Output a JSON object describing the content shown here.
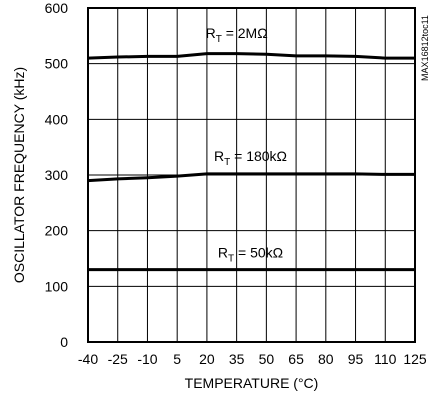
{
  "chart_data": {
    "type": "line",
    "title": "",
    "xlabel": "TEMPERATURE (°C)",
    "ylabel": "OSCILLATOR FREQUENCY (kHz)",
    "xlim": [
      -40,
      125
    ],
    "ylim": [
      0,
      600
    ],
    "grid": true,
    "x_ticks": [
      -40,
      -25,
      -10,
      5,
      20,
      35,
      50,
      65,
      80,
      95,
      110,
      125
    ],
    "y_ticks": [
      0,
      100,
      200,
      300,
      400,
      500,
      600
    ],
    "x_tick_labels": [
      "-40",
      "-25",
      "-10",
      "5",
      "20",
      "35",
      "50",
      "65",
      "80",
      "95",
      "110",
      "125"
    ],
    "y_tick_labels": [
      "0",
      "100",
      "200",
      "300",
      "400",
      "500",
      "600"
    ],
    "series": [
      {
        "label": {
          "prefix": "R",
          "sub": "T",
          "rest": " = 2MΩ"
        },
        "x": [
          -40,
          -25,
          -10,
          5,
          20,
          35,
          50,
          65,
          80,
          95,
          110,
          125
        ],
        "y": [
          510,
          512,
          513,
          513,
          518,
          518,
          517,
          514,
          514,
          513,
          510,
          510
        ]
      },
      {
        "label": {
          "prefix": "R",
          "sub": "T",
          "rest": " = 180kΩ"
        },
        "x": [
          -40,
          -25,
          -10,
          5,
          20,
          35,
          50,
          65,
          80,
          95,
          110,
          125
        ],
        "y": [
          290,
          293,
          295,
          298,
          302,
          302,
          302,
          302,
          302,
          302,
          301,
          301
        ]
      },
      {
        "label": {
          "prefix": "R",
          "sub": "T",
          "rest": " = 50kΩ"
        },
        "x": [
          -40,
          -25,
          -10,
          5,
          20,
          35,
          50,
          65,
          80,
          95,
          110,
          125
        ],
        "y": [
          130,
          130,
          130,
          130,
          130,
          130,
          130,
          130,
          130,
          130,
          130,
          130
        ]
      }
    ],
    "side_code": "MAX16812toc11"
  }
}
